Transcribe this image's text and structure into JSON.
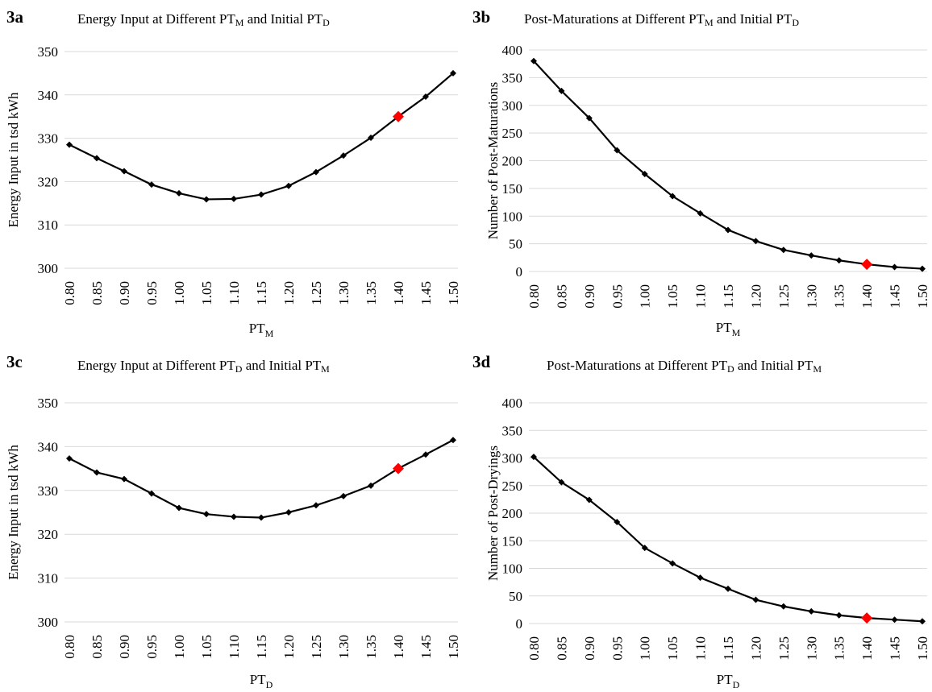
{
  "chart_data": [
    {
      "id": "3a",
      "type": "line",
      "panel_label": "3a",
      "title": {
        "pre": "Energy Input at Different PT",
        "sub1": "M",
        "mid": " and Initial PT",
        "sub2": "D"
      },
      "xlabel": {
        "main": "PT",
        "sub": "M"
      },
      "ylabel": "Energy Input in tsd kWh",
      "categories": [
        "0.80",
        "0.85",
        "0.90",
        "0.95",
        "1.00",
        "1.05",
        "1.10",
        "1.15",
        "1.20",
        "1.25",
        "1.30",
        "1.35",
        "1.40",
        "1.45",
        "1.50"
      ],
      "values": [
        328.5,
        325.4,
        322.4,
        319.3,
        317.3,
        315.9,
        316.0,
        317.0,
        319.0,
        322.2,
        326.0,
        330.1,
        335.0,
        339.6,
        345.0
      ],
      "highlight_index": 12,
      "ylim": [
        300,
        350
      ],
      "yticks": [
        300,
        310,
        320,
        330,
        340,
        350
      ],
      "grid": true,
      "colors": {
        "line": "#000000",
        "marker": "#000000",
        "highlight": "#ff0000",
        "grid": "#d9d9d9"
      }
    },
    {
      "id": "3b",
      "type": "line",
      "panel_label": "3b",
      "title": {
        "pre": "Post-Maturations at Different PT",
        "sub1": "M",
        "mid": " and Initial PT",
        "sub2": "D"
      },
      "xlabel": {
        "main": "PT",
        "sub": "M"
      },
      "ylabel": "Number of Post-Maturations",
      "categories": [
        "0.80",
        "0.85",
        "0.90",
        "0.95",
        "1.00",
        "1.05",
        "1.10",
        "1.15",
        "1.20",
        "1.25",
        "1.30",
        "1.35",
        "1.40",
        "1.45",
        "1.50"
      ],
      "values": [
        380,
        326,
        277,
        219,
        176,
        136,
        105,
        75,
        55,
        39,
        29,
        20,
        13,
        8,
        5
      ],
      "highlight_index": 12,
      "ylim": [
        0,
        400
      ],
      "yticks": [
        0,
        50,
        100,
        150,
        200,
        250,
        300,
        350,
        400
      ],
      "grid": true,
      "colors": {
        "line": "#000000",
        "marker": "#000000",
        "highlight": "#ff0000",
        "grid": "#d9d9d9"
      }
    },
    {
      "id": "3c",
      "type": "line",
      "panel_label": "3c",
      "title": {
        "pre": "Energy Input at Different PT",
        "sub1": "D",
        "mid": " and Initial PT",
        "sub2": "M"
      },
      "xlabel": {
        "main": "PT",
        "sub": "D"
      },
      "ylabel": "Energy Input in tsd kWh",
      "categories": [
        "0.80",
        "0.85",
        "0.90",
        "0.95",
        "1.00",
        "1.05",
        "1.10",
        "1.15",
        "1.20",
        "1.25",
        "1.30",
        "1.35",
        "1.40",
        "1.45",
        "1.50"
      ],
      "values": [
        337.3,
        334.1,
        332.6,
        329.3,
        326.0,
        324.6,
        324.0,
        323.8,
        325.0,
        326.6,
        328.7,
        331.1,
        335.0,
        338.2,
        341.5
      ],
      "highlight_index": 12,
      "ylim": [
        300,
        350
      ],
      "yticks": [
        300,
        310,
        320,
        330,
        340,
        350
      ],
      "grid": true,
      "colors": {
        "line": "#000000",
        "marker": "#000000",
        "highlight": "#ff0000",
        "grid": "#d9d9d9"
      }
    },
    {
      "id": "3d",
      "type": "line",
      "panel_label": "3d",
      "title": {
        "pre": "Post-Maturations at Different PT",
        "sub1": "D",
        "mid": " and Initial PT",
        "sub2": "M"
      },
      "xlabel": {
        "main": "PT",
        "sub": "D"
      },
      "ylabel": "Number of Post-Dryings",
      "categories": [
        "0.80",
        "0.85",
        "0.90",
        "0.95",
        "1.00",
        "1.05",
        "1.10",
        "1.15",
        "1.20",
        "1.25",
        "1.30",
        "1.35",
        "1.40",
        "1.45",
        "1.50"
      ],
      "values": [
        302,
        256,
        224,
        184,
        137,
        109,
        83,
        63,
        43,
        31,
        22,
        15,
        10,
        7,
        4
      ],
      "highlight_index": 12,
      "ylim": [
        0,
        400
      ],
      "yticks": [
        0,
        50,
        100,
        150,
        200,
        250,
        300,
        350,
        400
      ],
      "grid": true,
      "colors": {
        "line": "#000000",
        "marker": "#000000",
        "highlight": "#ff0000",
        "grid": "#d9d9d9"
      }
    }
  ]
}
